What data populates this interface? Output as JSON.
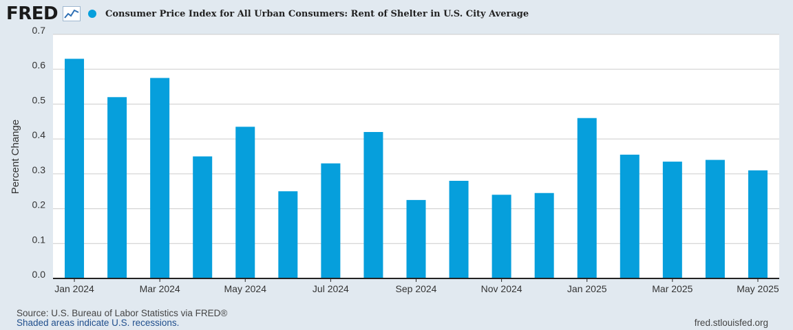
{
  "header": {
    "logo_text": "FRED",
    "logo_icon": "line-chart-icon",
    "series_title": "Consumer Price Index for All Urban Consumers: Rent of Shelter in U.S. City Average"
  },
  "colors": {
    "background": "#e1e9f0",
    "plot_background": "#ffffff",
    "bar": "#069fdc",
    "grid": "#cccccc"
  },
  "chart_data": {
    "type": "bar",
    "categories": [
      "Jan 2024",
      "Feb 2024",
      "Mar 2024",
      "Apr 2024",
      "May 2024",
      "Jun 2024",
      "Jul 2024",
      "Aug 2024",
      "Sep 2024",
      "Oct 2024",
      "Nov 2024",
      "Dec 2024",
      "Jan 2025",
      "Feb 2025",
      "Mar 2025",
      "Apr 2025",
      "May 2025"
    ],
    "values": [
      0.63,
      0.52,
      0.575,
      0.35,
      0.435,
      0.25,
      0.33,
      0.42,
      0.225,
      0.28,
      0.24,
      0.245,
      0.46,
      0.355,
      0.335,
      0.34,
      0.31
    ],
    "x_tick_labels": [
      "Jan 2024",
      "Mar 2024",
      "May 2024",
      "Jul 2024",
      "Sep 2024",
      "Nov 2024",
      "Jan 2025",
      "Mar 2025",
      "May 2025"
    ],
    "y_ticks": [
      "0.0",
      "0.1",
      "0.2",
      "0.3",
      "0.4",
      "0.5",
      "0.6",
      "0.7"
    ],
    "title": "",
    "xlabel": "",
    "ylabel": "Percent Change",
    "ylim": [
      0,
      0.7
    ],
    "grid": true,
    "legend": "none"
  },
  "footer": {
    "source": "Source: U.S. Bureau of Labor Statistics via FRED®",
    "recessions_link": "Shaded areas indicate U.S. recessions.",
    "url": "fred.stlouisfed.org"
  }
}
